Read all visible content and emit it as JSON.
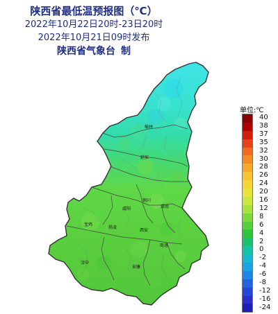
{
  "title": {
    "main": "陕西省最低温预报图（℃）",
    "period": "2022年10月22日20时-23日20时",
    "issued": "2022年10月21日09时发布",
    "issuer": "陕西省气象台",
    "issuer_suffix": "制"
  },
  "legend": {
    "title": "单位:℃",
    "labels": [
      "40",
      "38",
      "37",
      "35",
      "32",
      "30",
      "28",
      "26",
      "24",
      "20",
      "16",
      "12",
      "8",
      "6",
      "4",
      "2",
      "0",
      "-2",
      "-4",
      "-6",
      "-8",
      "-12",
      "-16",
      "-24"
    ],
    "colors": [
      "#8a0000",
      "#b00000",
      "#d41c0a",
      "#e8401a",
      "#f26a1f",
      "#f58a25",
      "#f7a82b",
      "#f9c232",
      "#f4d737",
      "#e6e33c",
      "#cbe63e",
      "#a8e03e",
      "#7ed73b",
      "#56d03a",
      "#2fc63f",
      "#19c070",
      "#14c3a4",
      "#16b8cf",
      "#1aa3e3",
      "#1f85e6",
      "#2363df",
      "#2646d8",
      "#2a2fcc",
      "#1f1fb8"
    ]
  },
  "cities": {
    "yulin": "榆林",
    "yanan": "延安",
    "tongchuan": "铜川",
    "weinan": "渭南",
    "xianyang": "咸阳",
    "baoji": "宝鸡",
    "yangling": "杨凌",
    "xian": "西安",
    "shangluo": "商洛",
    "hanzhong": "汉中",
    "ankang": "安康"
  },
  "colors": {
    "title": "#1f2d86",
    "north_cyan": "#4fe6df",
    "central_green": "#4fd96a",
    "south_green": "#57cf3f",
    "boundary": "#333333"
  }
}
